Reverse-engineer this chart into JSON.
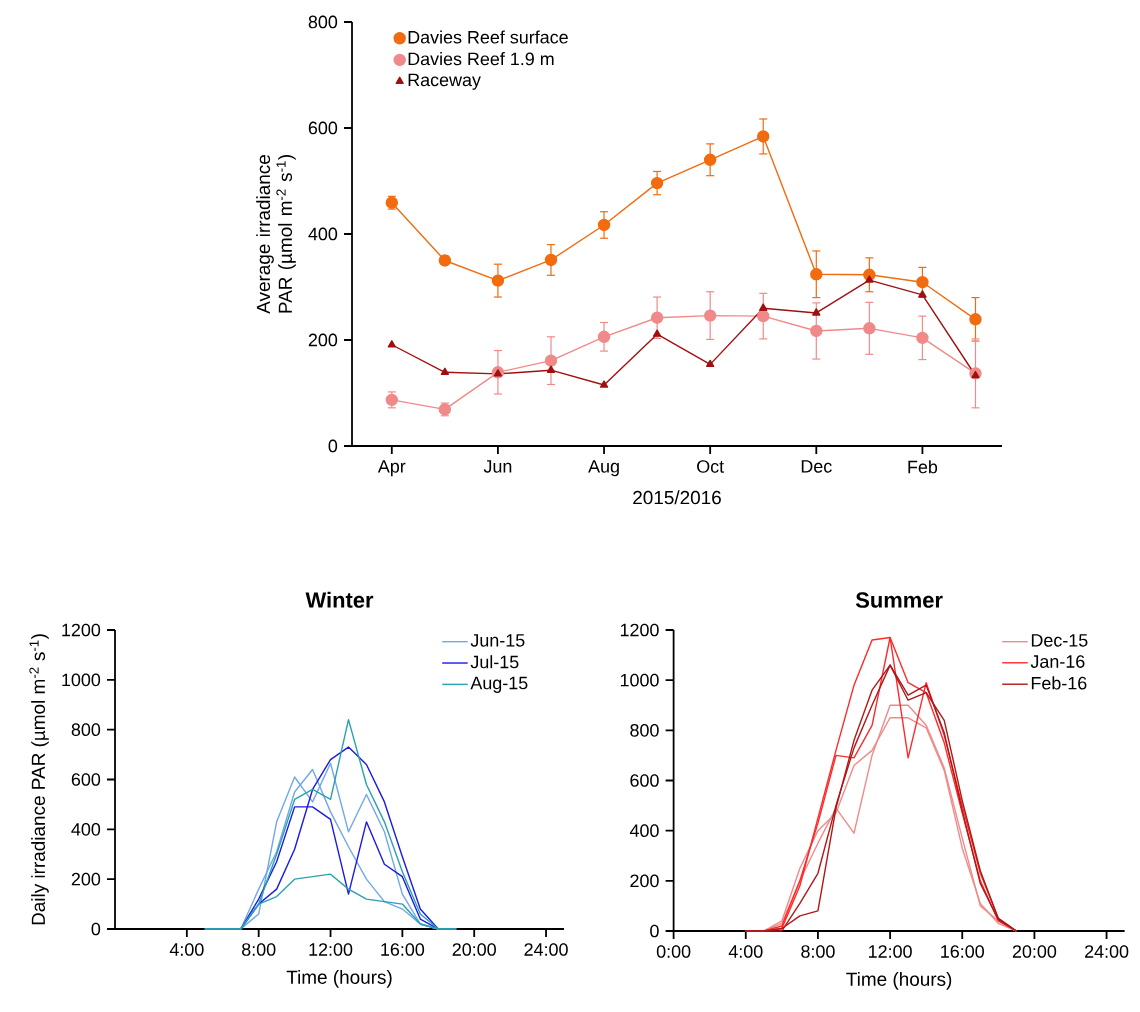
{
  "chart_data": [
    {
      "type": "line",
      "xlabel": "2015/2016",
      "ylabel": "Average irradiance PAR (µmol m$^{-2}$ s$^{-1}$)",
      "categories": [
        "Apr",
        null,
        "Jun",
        null,
        "Aug",
        null,
        "Oct",
        null,
        "Dec",
        null,
        "Feb",
        null
      ],
      "ylim": [
        0,
        800
      ],
      "yticks": [
        0,
        200,
        400,
        600,
        800
      ],
      "legend": "top left",
      "series": [
        {
          "name": "Davies Reef surface",
          "color": "#f26b0f",
          "marker": "circle",
          "values": [
            459,
            350,
            312,
            351,
            417,
            496,
            540,
            584,
            324,
            323,
            309,
            239
          ],
          "errors": [
            12,
            8,
            31,
            29,
            25,
            22,
            30,
            33,
            44,
            32,
            28,
            41
          ]
        },
        {
          "name": "Davies Reef 1.9 m",
          "color": "#f08a8a",
          "marker": "circle",
          "values": [
            87,
            69,
            139,
            161,
            206,
            242,
            246,
            245,
            217,
            222,
            204,
            137
          ],
          "errors": [
            15,
            12,
            41,
            45,
            27,
            39,
            45,
            43,
            53,
            49,
            41,
            65
          ]
        },
        {
          "name": "Raceway",
          "color": "#a01010",
          "marker": "triangle",
          "values": [
            191,
            139,
            136,
            143,
            115,
            211,
            154,
            260,
            251,
            313,
            285,
            133
          ]
        }
      ]
    },
    {
      "type": "line",
      "title": "Winter",
      "xlabel": "Time (hours)",
      "ylabel": "Daily irradiance PAR (µmol m$^{-2}$ s$^{-1}$)",
      "x": [
        5,
        6,
        7,
        8,
        9,
        10,
        11,
        12,
        13,
        14,
        15,
        16,
        17,
        18,
        19
      ],
      "xlim": [
        0,
        25
      ],
      "xticks": [
        {
          "value": 4,
          "label": "4:00"
        },
        {
          "value": 8,
          "label": "8:00"
        },
        {
          "value": 12,
          "label": "12:00"
        },
        {
          "value": 16,
          "label": "16:00"
        },
        {
          "value": 20,
          "label": "20:00"
        },
        {
          "value": 24,
          "label": "24:00"
        }
      ],
      "ylim": [
        0,
        1200
      ],
      "yticks": [
        0,
        200,
        400,
        600,
        800,
        1000,
        1200
      ],
      "legend": "top right",
      "series": [
        {
          "name": "Jun-15",
          "color": "#6fa8e8",
          "values": [
            0,
            0,
            0,
            60,
            430,
            610,
            510,
            665,
            390,
            540,
            390,
            140,
            20,
            0,
            0
          ]
        },
        {
          "color": "#6fa8e8",
          "values": [
            0,
            0,
            0,
            160,
            310,
            550,
            640,
            470,
            330,
            200,
            110,
            80,
            20,
            0,
            0
          ]
        },
        {
          "name": "Jul-15",
          "color": "#1a1ae6",
          "values": [
            0,
            0,
            0,
            120,
            270,
            490,
            490,
            440,
            140,
            430,
            260,
            210,
            40,
            0,
            0
          ]
        },
        {
          "color": "#1a1ae6",
          "values": [
            0,
            0,
            0,
            100,
            160,
            320,
            560,
            680,
            730,
            660,
            510,
            290,
            80,
            0,
            0
          ]
        },
        {
          "name": "Aug-15",
          "color": "#2aa0b0",
          "values": [
            0,
            0,
            0,
            100,
            300,
            520,
            560,
            520,
            840,
            580,
            430,
            230,
            60,
            0,
            0
          ]
        },
        {
          "color": "#2aa0b0",
          "values": [
            0,
            0,
            0,
            100,
            130,
            200,
            210,
            220,
            160,
            120,
            110,
            100,
            20,
            0,
            0
          ]
        }
      ]
    },
    {
      "type": "line",
      "title": "Summer",
      "xlabel": "Time (hours)",
      "x": [
        4,
        5,
        6,
        7,
        8,
        9,
        10,
        11,
        12,
        13,
        14,
        15,
        16,
        17,
        18,
        19
      ],
      "xlim": [
        0,
        25
      ],
      "xticks": [
        {
          "value": 0,
          "label": "0:00"
        },
        {
          "value": 4,
          "label": "4:00"
        },
        {
          "value": 8,
          "label": "8:00"
        },
        {
          "value": 12,
          "label": "12:00"
        },
        {
          "value": 16,
          "label": "16:00"
        },
        {
          "value": 20,
          "label": "20:00"
        },
        {
          "value": 24,
          "label": "24:00"
        }
      ],
      "ylim": [
        0,
        1200
      ],
      "yticks": [
        0,
        200,
        400,
        600,
        800,
        1000,
        1200
      ],
      "legend": "top right",
      "series": [
        {
          "name": "Dec-15",
          "color": "#f08a8a",
          "values": [
            0,
            0,
            30,
            200,
            350,
            490,
            390,
            700,
            900,
            900,
            820,
            650,
            370,
            100,
            40,
            0
          ]
        },
        {
          "color": "#f08a8a",
          "values": [
            0,
            0,
            40,
            250,
            400,
            470,
            660,
            720,
            850,
            850,
            810,
            640,
            330,
            110,
            30,
            0
          ]
        },
        {
          "name": "Jan-16",
          "color": "#ff2a2a",
          "values": [
            0,
            0,
            20,
            200,
            430,
            700,
            690,
            820,
            1170,
            690,
            990,
            780,
            500,
            230,
            50,
            0
          ]
        },
        {
          "color": "#ff2a2a",
          "values": [
            0,
            0,
            10,
            180,
            450,
            720,
            980,
            1160,
            1170,
            990,
            950,
            750,
            470,
            200,
            40,
            0
          ]
        },
        {
          "name": "Feb-16",
          "color": "#b01818",
          "values": [
            0,
            0,
            10,
            60,
            80,
            490,
            760,
            960,
            1060,
            920,
            950,
            840,
            520,
            240,
            50,
            0
          ]
        },
        {
          "color": "#b01818",
          "values": [
            0,
            0,
            0,
            110,
            230,
            500,
            730,
            900,
            1060,
            940,
            980,
            790,
            480,
            190,
            45,
            0
          ]
        }
      ]
    }
  ]
}
